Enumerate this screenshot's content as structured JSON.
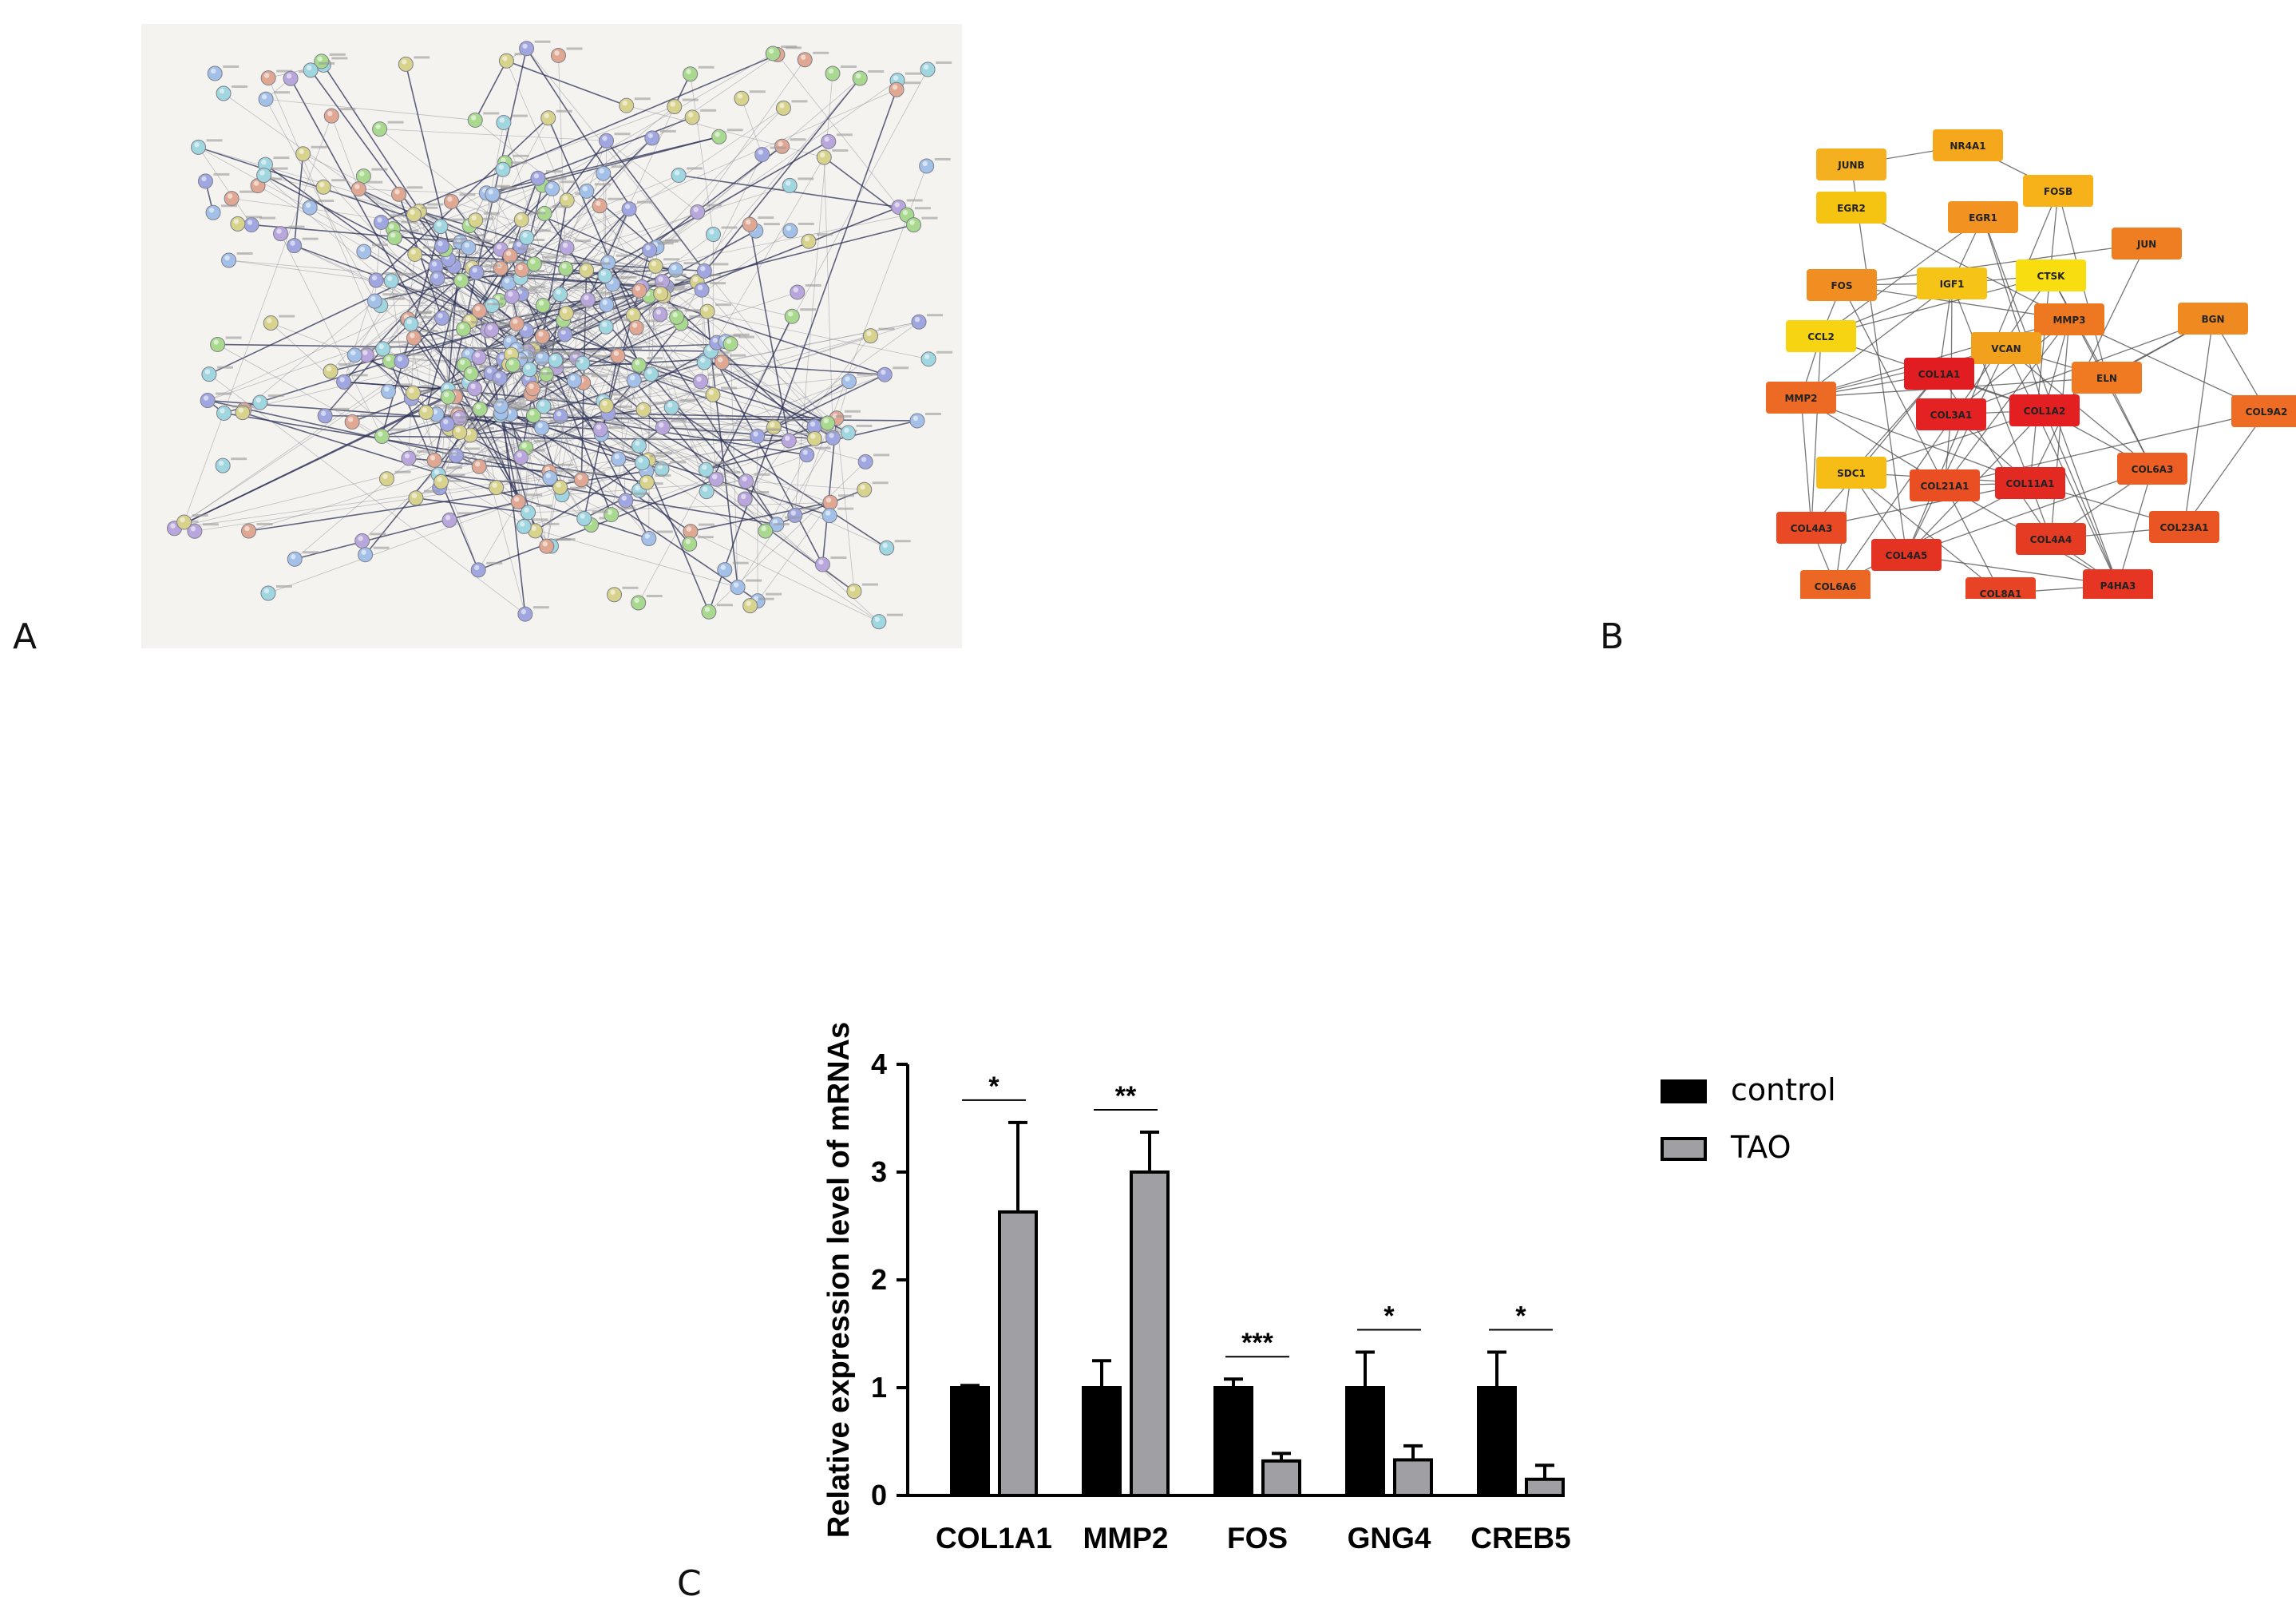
{
  "panels": {
    "a_letter": "A",
    "b_letter": "B",
    "c_letter": "C"
  },
  "network_b": {
    "nodes": [
      {
        "label": "JUNB",
        "color": "#f4b01e"
      },
      {
        "label": "NR4A1",
        "color": "#f5a81c"
      },
      {
        "label": "FOSB",
        "color": "#f6b218"
      },
      {
        "label": "EGR2",
        "color": "#f5c412"
      },
      {
        "label": "EGR1",
        "color": "#f29220"
      },
      {
        "label": "JUN",
        "color": "#ef7e22"
      },
      {
        "label": "FOS",
        "color": "#f08e21"
      },
      {
        "label": "IGF1",
        "color": "#f6c416"
      },
      {
        "label": "CTSK",
        "color": "#f8de10"
      },
      {
        "label": "CCL2",
        "color": "#f6d412"
      },
      {
        "label": "MMP3",
        "color": "#ee7822"
      },
      {
        "label": "BGN",
        "color": "#ef8a20"
      },
      {
        "label": "VCAN",
        "color": "#f2a11c"
      },
      {
        "label": "ELN",
        "color": "#ef7a21"
      },
      {
        "label": "COL1A1",
        "color": "#e21d22"
      },
      {
        "label": "MMP2",
        "color": "#ec6a24"
      },
      {
        "label": "COL3A1",
        "color": "#e42223"
      },
      {
        "label": "COL1A2",
        "color": "#e41f22"
      },
      {
        "label": "COL9A2",
        "color": "#ee6c24"
      },
      {
        "label": "SDC1",
        "color": "#f5bd15"
      },
      {
        "label": "COL21A1",
        "color": "#ea4f24"
      },
      {
        "label": "COL11A1",
        "color": "#e32a22"
      },
      {
        "label": "COL6A3",
        "color": "#ec5e24"
      },
      {
        "label": "COL4A3",
        "color": "#e94924"
      },
      {
        "label": "COL23A1",
        "color": "#ea5524"
      },
      {
        "label": "COL4A5",
        "color": "#e53323"
      },
      {
        "label": "COL4A4",
        "color": "#e63b23"
      },
      {
        "label": "COL6A6",
        "color": "#ec6624"
      },
      {
        "label": "COL8A1",
        "color": "#e84324"
      },
      {
        "label": "P4HA3",
        "color": "#e63623"
      }
    ]
  },
  "chart_data": {
    "type": "bar",
    "categories": [
      "COL1A1",
      "MMP2",
      "FOS",
      "GNG4",
      "CREB5"
    ],
    "series": [
      {
        "name": "control",
        "values": [
          1.0,
          1.0,
          1.0,
          1.0,
          1.0
        ],
        "errors": [
          0.02,
          0.25,
          0.08,
          0.33,
          0.33
        ],
        "color": "#000000"
      },
      {
        "name": "TAO",
        "values": [
          2.63,
          3.0,
          0.32,
          0.33,
          0.15
        ],
        "errors": [
          0.83,
          0.37,
          0.07,
          0.13,
          0.13
        ],
        "color": "#a0a0a4"
      }
    ],
    "significance": [
      "*",
      "**",
      "***",
      "*",
      "*"
    ],
    "ylabel": "Relative expression level of mRNAs",
    "yticks": [
      "0",
      "1",
      "2",
      "3",
      "4"
    ],
    "ylim": [
      0,
      4
    ],
    "legend": "right"
  }
}
